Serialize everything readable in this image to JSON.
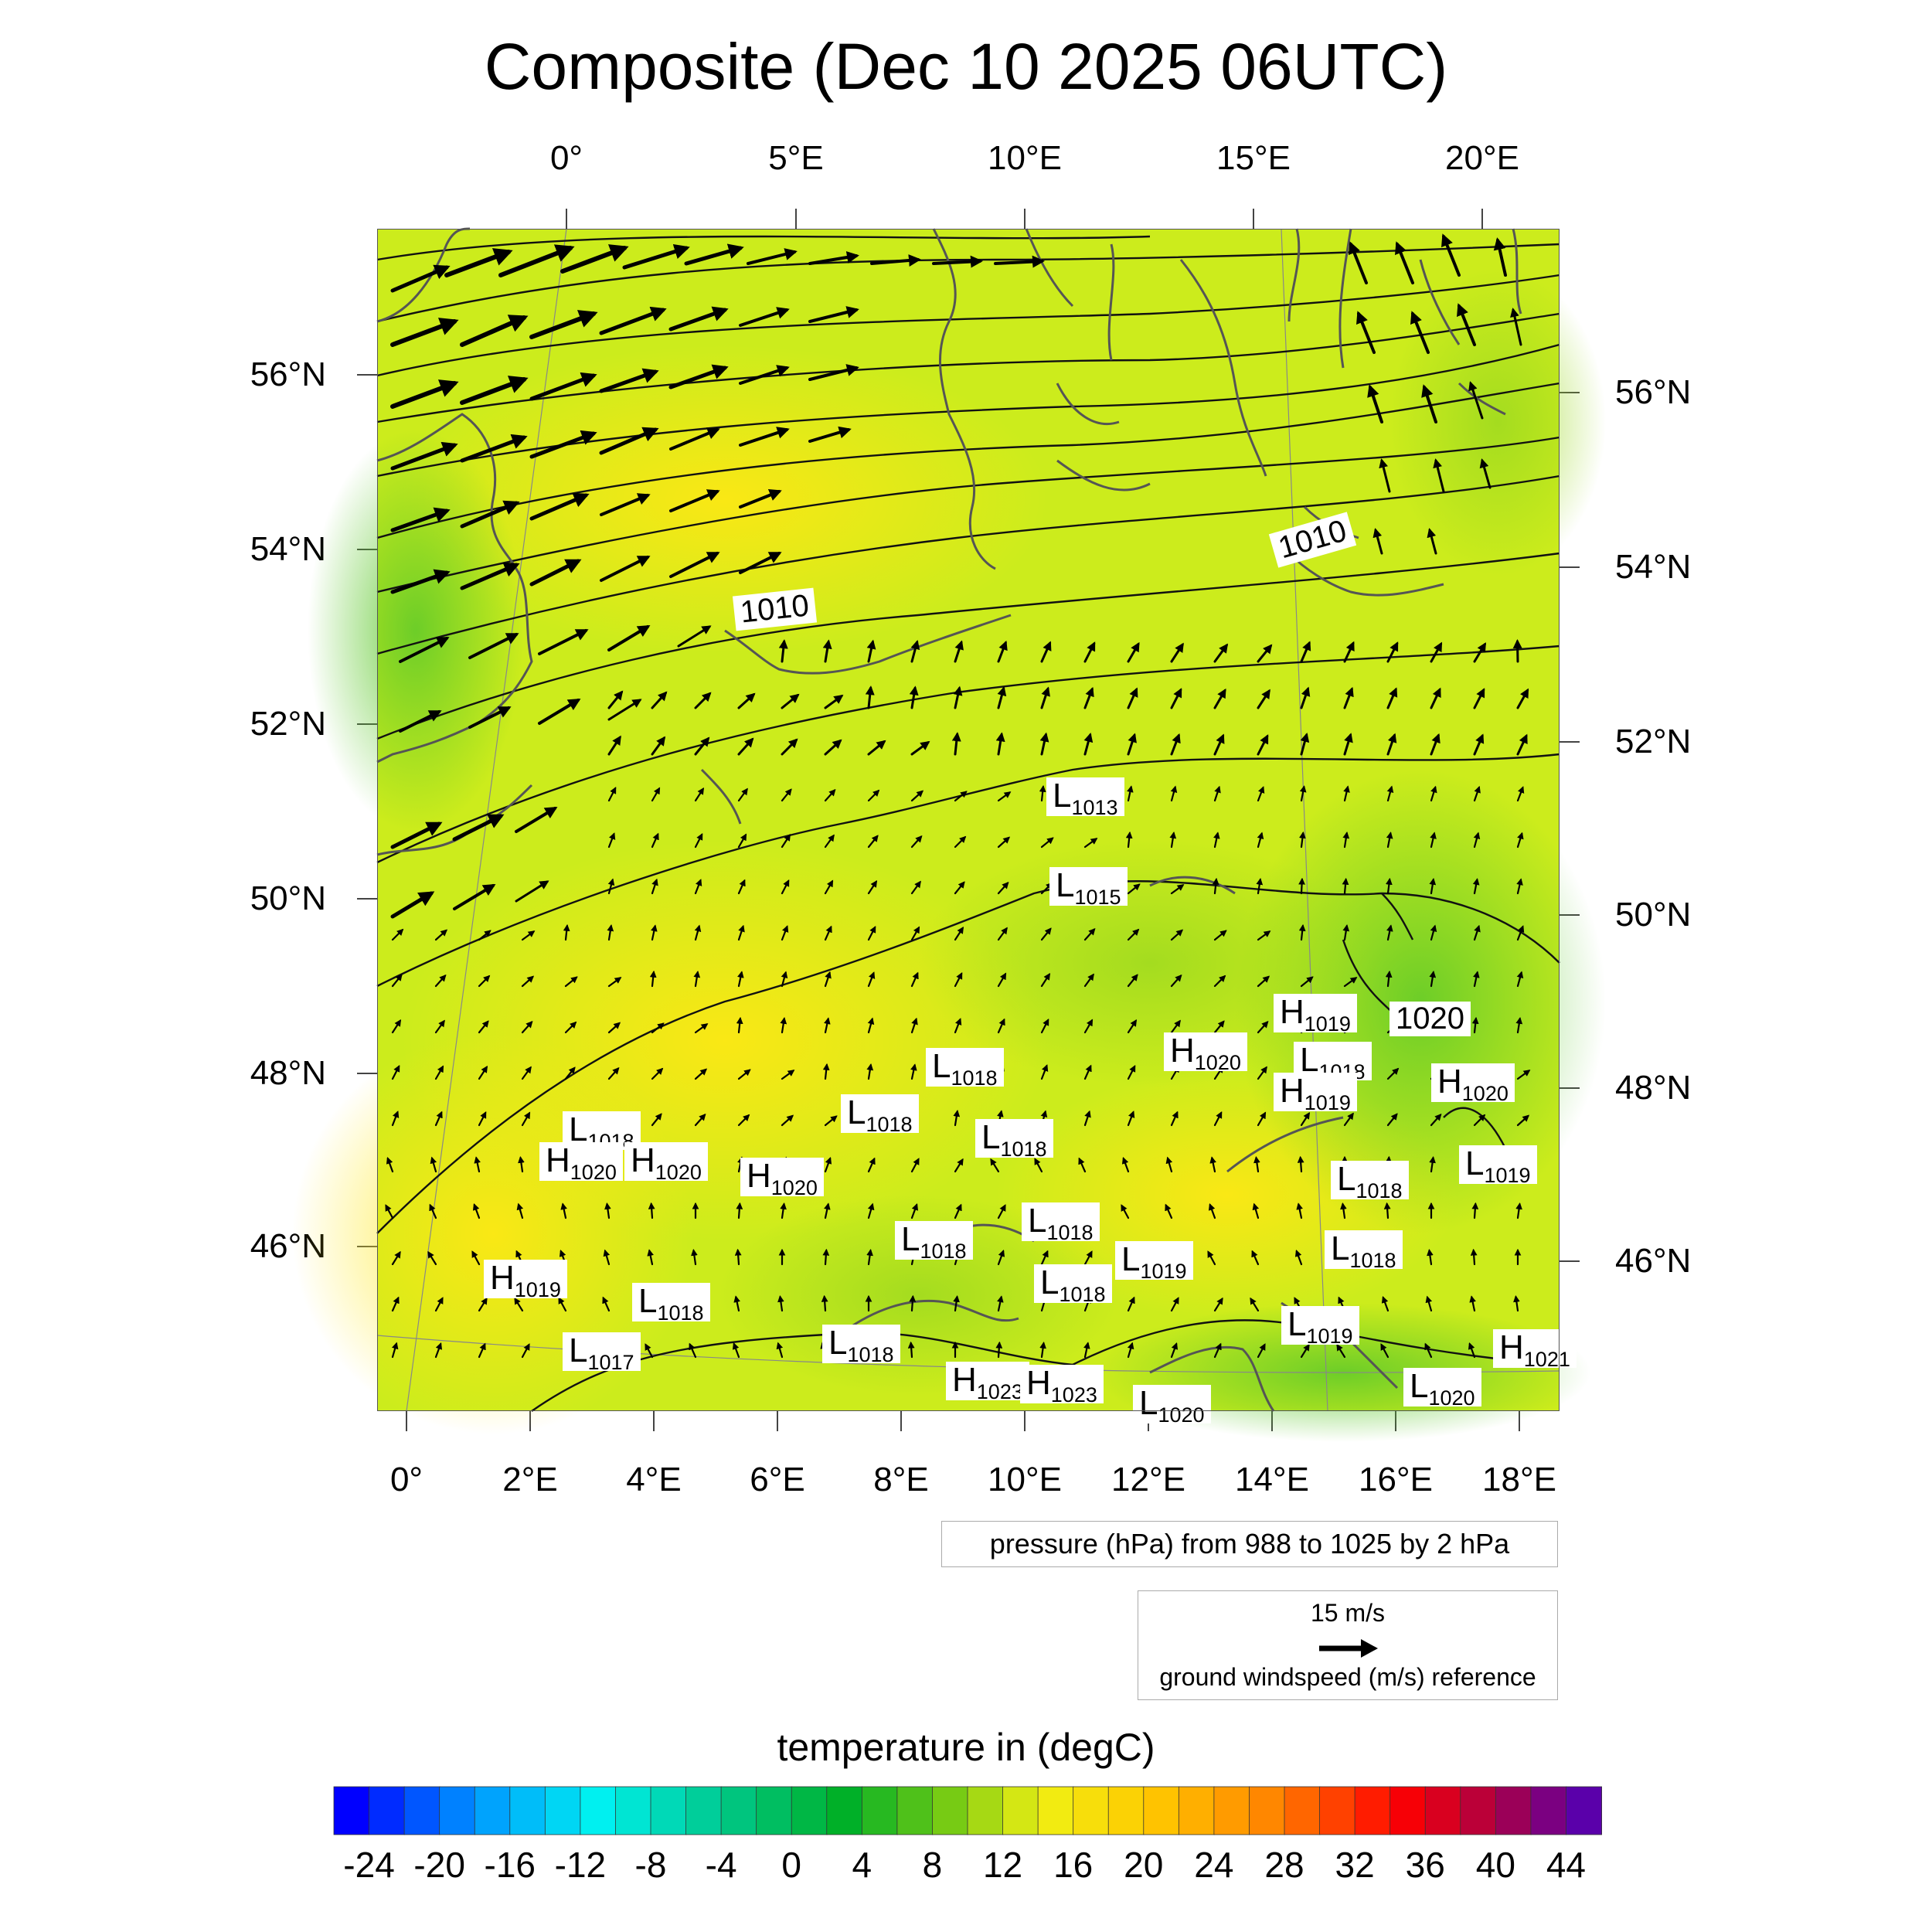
{
  "title": "Composite (Dec 10 2025 06UTC)",
  "top_lon_ticks": [
    "0°",
    "5°E",
    "10°E",
    "15°E",
    "20°E"
  ],
  "bottom_lon_ticks": [
    "0°",
    "2°E",
    "4°E",
    "6°E",
    "8°E",
    "10°E",
    "12°E",
    "14°E",
    "16°E",
    "18°E"
  ],
  "left_lat_ticks": [
    "56°N",
    "54°N",
    "52°N",
    "50°N",
    "48°N",
    "46°N"
  ],
  "right_lat_ticks": [
    "56°N",
    "54°N",
    "52°N",
    "50°N",
    "48°N",
    "46°N"
  ],
  "contour_labels": [
    "1010",
    "1010",
    "1020"
  ],
  "pressure_centers": [
    {
      "type": "L",
      "value": "1013"
    },
    {
      "type": "L",
      "value": "1015"
    },
    {
      "type": "H",
      "value": "1019"
    },
    {
      "type": "H",
      "value": "1020"
    },
    {
      "type": "L",
      "value": "1018"
    },
    {
      "type": "H",
      "value": "1019"
    },
    {
      "type": "L",
      "value": "1018"
    },
    {
      "type": "H",
      "value": "1020"
    },
    {
      "type": "L",
      "value": "1018"
    },
    {
      "type": "L",
      "value": "1018"
    },
    {
      "type": "H",
      "value": "1020"
    },
    {
      "type": "H",
      "value": "1020"
    },
    {
      "type": "L",
      "value": "1018"
    },
    {
      "type": "H",
      "value": "1020"
    },
    {
      "type": "L",
      "value": "1019"
    },
    {
      "type": "L",
      "value": "1018"
    },
    {
      "type": "L",
      "value": "1018"
    },
    {
      "type": "L",
      "value": "1018"
    },
    {
      "type": "L",
      "value": "1019"
    },
    {
      "type": "L",
      "value": "1018"
    },
    {
      "type": "H",
      "value": "1019"
    },
    {
      "type": "L",
      "value": "1018"
    },
    {
      "type": "L",
      "value": "1018"
    },
    {
      "type": "L",
      "value": "1019"
    },
    {
      "type": "H",
      "value": "1021"
    },
    {
      "type": "L",
      "value": "1017"
    },
    {
      "type": "L",
      "value": "1018"
    },
    {
      "type": "H",
      "value": "1023"
    },
    {
      "type": "H",
      "value": "1023"
    },
    {
      "type": "L",
      "value": "1020"
    },
    {
      "type": "L",
      "value": "1020"
    }
  ],
  "pressure_info": "pressure (hPa) from 988 to 1025 by 2 hPa",
  "wind_reference": {
    "speed": "15 m/s",
    "label": "ground windspeed (m/s) reference"
  },
  "colorbar": {
    "title": "temperature in (degC)",
    "min": -26,
    "max": 46,
    "step": 2,
    "tick_labels": [
      "-24",
      "-20",
      "-16",
      "-12",
      "-8",
      "-4",
      "0",
      "4",
      "8",
      "12",
      "16",
      "20",
      "24",
      "28",
      "32",
      "36",
      "40",
      "44"
    ]
  },
  "colors": {
    "field_warm": "#f2ee1a",
    "field_mid": "#b8e21c",
    "field_cool": "#6ccc28",
    "coastline": "#555555",
    "isobar": "#111111"
  }
}
